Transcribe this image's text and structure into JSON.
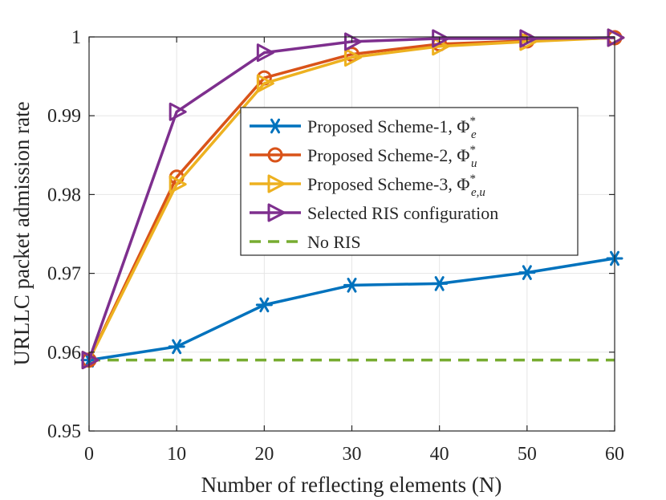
{
  "chart_data": {
    "type": "line",
    "title": "",
    "xlabel": "Number of reflecting elements (N)",
    "ylabel": "URLLC packet admission rate",
    "xlim": [
      0,
      60
    ],
    "ylim": [
      0.95,
      1.0
    ],
    "x_ticks": [
      0,
      10,
      20,
      30,
      40,
      50,
      60
    ],
    "y_ticks": [
      0.95,
      0.96,
      0.97,
      0.98,
      0.99,
      1.0
    ],
    "x_tick_labels": [
      "0",
      "10",
      "20",
      "30",
      "40",
      "50",
      "60"
    ],
    "y_tick_labels": [
      "0.95",
      "0.96",
      "0.97",
      "0.98",
      "0.99",
      "1"
    ],
    "grid": true,
    "legend_position": "upper-right",
    "x": [
      0,
      10,
      20,
      30,
      40,
      50,
      60
    ],
    "series": [
      {
        "name": "Proposed Scheme-1",
        "subscript": "e",
        "color": "#0072BD",
        "marker": "asterisk",
        "dashed": false,
        "values": [
          0.959,
          0.9607,
          0.966,
          0.9685,
          0.9687,
          0.9701,
          0.9719
        ]
      },
      {
        "name": "Proposed Scheme-2",
        "subscript": "u",
        "color": "#D95319",
        "marker": "circle",
        "dashed": false,
        "values": [
          0.959,
          0.9822,
          0.9948,
          0.9978,
          0.9991,
          0.9995,
          0.9999
        ]
      },
      {
        "name": "Proposed Scheme-3",
        "subscript": "e,u",
        "color": "#EDB120",
        "marker": "triangle-right",
        "dashed": false,
        "values": [
          0.959,
          0.9813,
          0.9941,
          0.9974,
          0.9988,
          0.9994,
          0.9999
        ]
      },
      {
        "name": "Selected RIS configuration",
        "subscript": "",
        "color": "#7E2F8E",
        "marker": "triangle-right",
        "dashed": false,
        "values": [
          0.959,
          0.9905,
          0.998,
          0.9994,
          0.9998,
          0.9998,
          0.9999
        ]
      },
      {
        "name": "No RIS",
        "subscript": "",
        "color": "#77AC30",
        "marker": "none",
        "dashed": true,
        "values": [
          0.959,
          0.959,
          0.959,
          0.959,
          0.959,
          0.959,
          0.959
        ]
      }
    ]
  }
}
